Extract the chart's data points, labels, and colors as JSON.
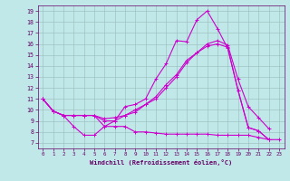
{
  "background_color": "#c0e8e8",
  "grid_color": "#99bbbb",
  "line_color": "#cc00cc",
  "xlabel": "Windchill (Refroidissement éolien,°C)",
  "xlim": [
    -0.5,
    23.5
  ],
  "ylim": [
    6.5,
    19.5
  ],
  "yticks": [
    7,
    8,
    9,
    10,
    11,
    12,
    13,
    14,
    15,
    16,
    17,
    18,
    19
  ],
  "xticks": [
    0,
    1,
    2,
    3,
    4,
    5,
    6,
    7,
    8,
    9,
    10,
    11,
    12,
    13,
    14,
    15,
    16,
    17,
    18,
    19,
    20,
    21,
    22,
    23
  ],
  "line1_x": [
    0,
    1,
    2,
    3,
    4,
    5,
    6,
    7,
    8,
    9,
    10,
    11,
    12,
    13,
    14,
    15,
    16,
    17,
    18,
    19,
    20,
    21,
    22
  ],
  "line1_y": [
    11,
    9.9,
    9.5,
    8.5,
    7.7,
    7.7,
    8.5,
    9.0,
    10.3,
    10.5,
    11.0,
    12.8,
    14.2,
    16.3,
    16.2,
    18.2,
    19.0,
    17.4,
    15.6,
    11.8,
    8.4,
    8.1,
    7.3
  ],
  "line2_x": [
    0,
    1,
    2,
    3,
    4,
    5,
    6,
    7,
    8,
    9,
    10,
    11,
    12,
    13,
    14,
    15,
    16,
    17,
    18,
    19,
    20,
    21,
    22
  ],
  "line2_y": [
    11,
    9.9,
    9.5,
    9.5,
    9.5,
    9.5,
    9.2,
    9.3,
    9.5,
    9.8,
    10.5,
    11.2,
    12.3,
    13.2,
    14.5,
    15.2,
    15.8,
    16.0,
    15.7,
    11.8,
    8.4,
    8.1,
    7.3
  ],
  "line3_x": [
    0,
    1,
    2,
    3,
    4,
    5,
    6,
    7,
    8,
    9,
    10,
    11,
    12,
    13,
    14,
    15,
    16,
    17,
    18,
    19,
    20,
    21,
    22
  ],
  "line3_y": [
    11,
    9.9,
    9.5,
    9.5,
    9.5,
    9.5,
    9.0,
    9.0,
    9.5,
    10.0,
    10.5,
    11.0,
    12.0,
    13.0,
    14.3,
    15.2,
    16.0,
    16.3,
    15.9,
    12.8,
    10.3,
    9.3,
    8.3
  ],
  "line4_x": [
    0,
    1,
    2,
    3,
    4,
    5,
    6,
    7,
    8,
    9,
    10,
    11,
    12,
    13,
    14,
    15,
    16,
    17,
    18,
    19,
    20,
    21,
    22,
    23
  ],
  "line4_y": [
    11,
    9.9,
    9.5,
    9.5,
    9.5,
    9.5,
    8.5,
    8.5,
    8.5,
    8.0,
    8.0,
    7.9,
    7.8,
    7.8,
    7.8,
    7.8,
    7.8,
    7.7,
    7.7,
    7.7,
    7.7,
    7.5,
    7.3,
    7.3
  ]
}
